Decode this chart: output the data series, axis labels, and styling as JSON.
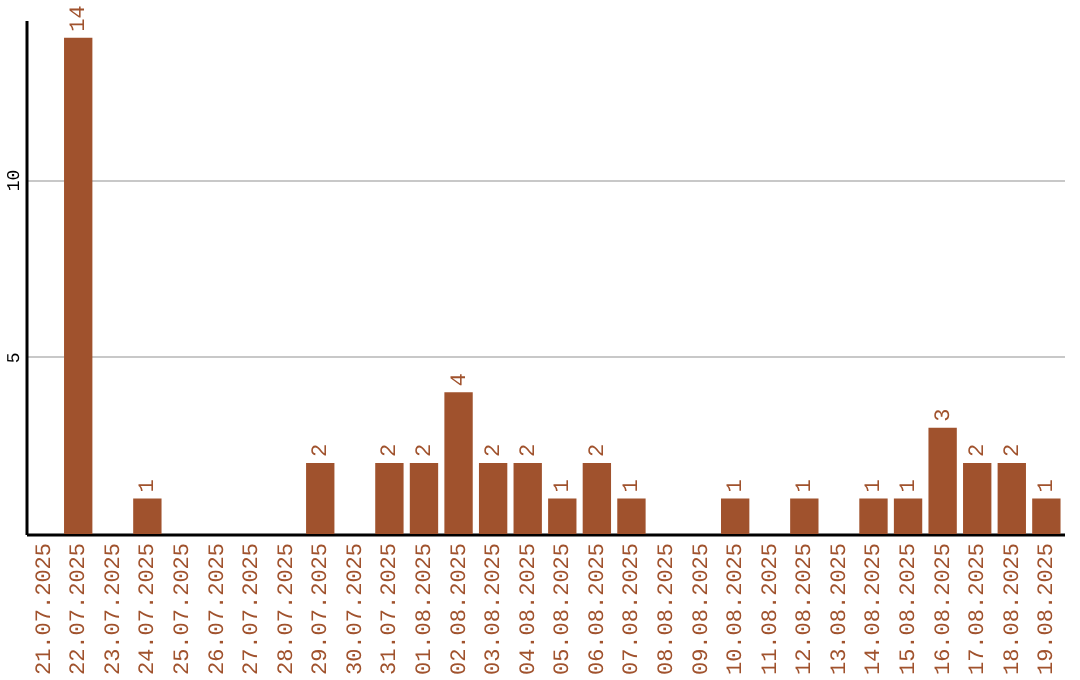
{
  "chart_data": {
    "type": "bar",
    "categories": [
      "21.07.2025",
      "22.07.2025",
      "23.07.2025",
      "24.07.2025",
      "25.07.2025",
      "26.07.2025",
      "27.07.2025",
      "28.07.2025",
      "29.07.2025",
      "30.07.2025",
      "31.07.2025",
      "01.08.2025",
      "02.08.2025",
      "03.08.2025",
      "04.08.2025",
      "05.08.2025",
      "06.08.2025",
      "07.08.2025",
      "08.08.2025",
      "09.08.2025",
      "10.08.2025",
      "11.08.2025",
      "12.08.2025",
      "13.08.2025",
      "14.08.2025",
      "15.08.2025",
      "16.08.2025",
      "17.08.2025",
      "18.08.2025",
      "19.08.2025"
    ],
    "values": [
      0,
      14,
      0,
      1,
      0,
      0,
      0,
      0,
      2,
      0,
      2,
      2,
      4,
      2,
      2,
      1,
      2,
      1,
      0,
      0,
      1,
      0,
      1,
      0,
      1,
      1,
      3,
      2,
      2,
      1
    ],
    "value_labels": [
      null,
      "14",
      null,
      "1",
      null,
      null,
      null,
      null,
      "2",
      null,
      "2",
      "2",
      "4",
      "2",
      "2",
      "1",
      "2",
      "1",
      null,
      null,
      "1",
      null,
      "1",
      null,
      "1",
      "1",
      "3",
      "2",
      "2",
      "1"
    ],
    "color": "#a0522d",
    "ylim": [
      0,
      14.5
    ],
    "yticks": [
      5,
      10
    ],
    "grid": "y"
  }
}
